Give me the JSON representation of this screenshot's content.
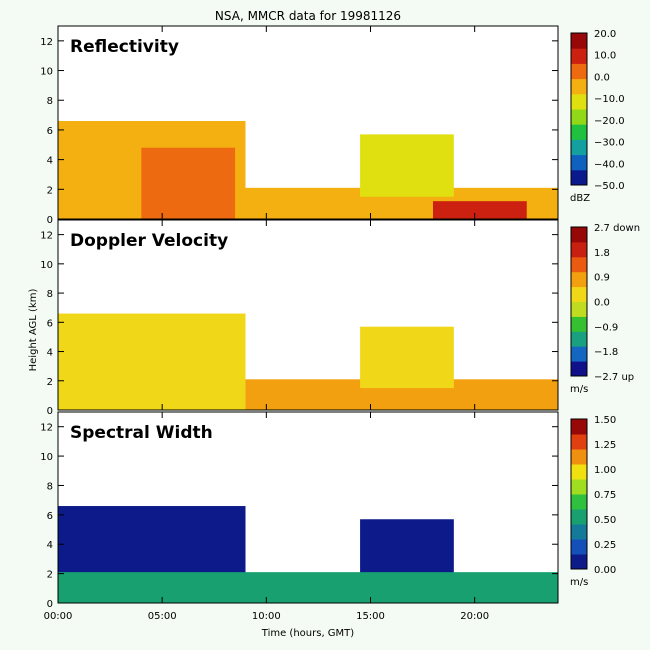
{
  "title": "NSA, MMCR data for 19981126",
  "chart_data": [
    {
      "type": "heatmap",
      "title": "Reflectivity",
      "xlabel": "Time (hours, GMT)",
      "ylabel": "Height AGL (km)",
      "xlim": [
        0,
        24
      ],
      "ylim": [
        0,
        13
      ],
      "xticks": [
        "00:00",
        "05:00",
        "10:00",
        "15:00",
        "20:00"
      ],
      "yticks": [
        "0",
        "2",
        "4",
        "6",
        "8",
        "10",
        "12"
      ],
      "colorbar": {
        "ticks": [
          "20.0",
          "10.0",
          "0.0",
          "−10.0",
          "−20.0",
          "−30.0",
          "−40.0",
          "−50.0"
        ],
        "unit": "dBZ",
        "range": [
          -50,
          20
        ]
      },
      "cloud_layers": [
        {
          "t_start": 0.0,
          "t_end": 24.0,
          "base_km": 0.0,
          "top_km": 2.1,
          "value": -5
        },
        {
          "t_start": 0.0,
          "t_end": 9.0,
          "base_km": 0.0,
          "top_km": 6.6,
          "value": -5
        },
        {
          "t_start": 4.0,
          "t_end": 8.5,
          "base_km": 0.0,
          "top_km": 4.8,
          "value": 5
        },
        {
          "t_start": 14.5,
          "t_end": 19.0,
          "base_km": 1.5,
          "top_km": 5.7,
          "value": -12
        },
        {
          "t_start": 18.0,
          "t_end": 22.5,
          "base_km": 0.0,
          "top_km": 1.2,
          "value": 12
        }
      ]
    },
    {
      "type": "heatmap",
      "title": "Doppler Velocity",
      "xlabel": "Time (hours, GMT)",
      "ylabel": "Height AGL (km)",
      "xlim": [
        0,
        24
      ],
      "ylim": [
        0,
        13
      ],
      "xticks": [
        "00:00",
        "05:00",
        "10:00",
        "15:00",
        "20:00"
      ],
      "yticks": [
        "0",
        "2",
        "4",
        "6",
        "8",
        "10",
        "12"
      ],
      "colorbar": {
        "ticks": [
          "2.7 down",
          "1.8",
          "0.9",
          "0.0",
          "−0.9",
          "−1.8",
          "−2.7 up"
        ],
        "unit": "m/s",
        "range": [
          -2.7,
          2.7
        ]
      },
      "cloud_layers": [
        {
          "t_start": 0.0,
          "t_end": 24.0,
          "base_km": 0.0,
          "top_km": 2.1,
          "value": 0.6
        },
        {
          "t_start": 0.0,
          "t_end": 9.0,
          "base_km": 0.0,
          "top_km": 6.6,
          "value": 0.5
        },
        {
          "t_start": 14.5,
          "t_end": 19.0,
          "base_km": 1.5,
          "top_km": 5.7,
          "value": 0.2
        }
      ]
    },
    {
      "type": "heatmap",
      "title": "Spectral Width",
      "xlabel": "Time (hours, GMT)",
      "ylabel": "Height AGL (km)",
      "xlim": [
        0,
        24
      ],
      "ylim": [
        0,
        13
      ],
      "xticks": [
        "00:00",
        "05:00",
        "10:00",
        "15:00",
        "20:00"
      ],
      "yticks": [
        "0",
        "2",
        "4",
        "6",
        "8",
        "10",
        "12"
      ],
      "colorbar": {
        "ticks": [
          "1.50",
          "1.25",
          "1.00",
          "0.75",
          "0.50",
          "0.25",
          "0.00"
        ],
        "unit": "m/s",
        "range": [
          0,
          1.5
        ]
      },
      "cloud_layers": [
        {
          "t_start": 0.0,
          "t_end": 9.0,
          "base_km": 0.0,
          "top_km": 6.6,
          "value": 0.15
        },
        {
          "t_start": 14.5,
          "t_end": 19.0,
          "base_km": 1.5,
          "top_km": 5.7,
          "value": 0.12
        },
        {
          "t_start": 0.0,
          "t_end": 24.0,
          "base_km": 0.0,
          "top_km": 2.1,
          "value": 0.6
        }
      ]
    }
  ]
}
